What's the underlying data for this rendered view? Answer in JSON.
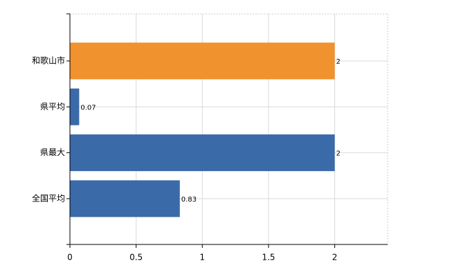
{
  "chart_data": {
    "type": "bar",
    "orientation": "horizontal",
    "categories": [
      "和歌山市",
      "県平均",
      "県最大",
      "全国平均"
    ],
    "values": [
      2,
      0.07,
      2,
      0.83
    ],
    "colors": [
      "#f0922e",
      "#3b6aa8",
      "#3b6aa8",
      "#3b6aa8"
    ],
    "xlim": [
      0,
      2.4
    ],
    "xticks": [
      0,
      0.5,
      1,
      1.5,
      2
    ],
    "grid": true
  }
}
